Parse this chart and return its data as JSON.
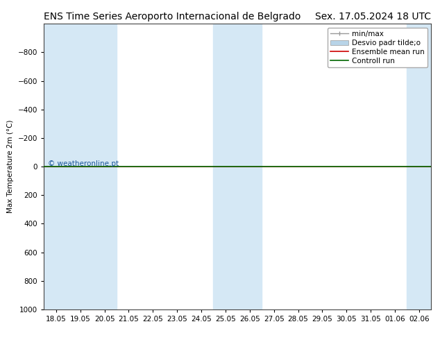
{
  "title_left": "ENS Time Series Aeroporto Internacional de Belgrado",
  "title_right": "Sex. 17.05.2024 18 UTC",
  "ylabel": "Max Temperature 2m (°C)",
  "xlim_dates": [
    "18.05",
    "19.05",
    "20.05",
    "21.05",
    "22.05",
    "23.05",
    "24.05",
    "25.05",
    "26.05",
    "27.05",
    "28.05",
    "29.05",
    "30.05",
    "31.05",
    "01.06",
    "02.06"
  ],
  "ylim": [
    1000,
    -1000
  ],
  "yticks": [
    -800,
    -600,
    -400,
    -200,
    0,
    200,
    400,
    600,
    800,
    1000
  ],
  "background_color": "#ffffff",
  "plot_bg_color": "#ffffff",
  "shaded_indices": [
    0,
    1,
    2,
    7,
    8,
    15
  ],
  "shaded_color": "#d5e8f5",
  "control_run_color": "#006600",
  "ensemble_mean_color": "#cc0000",
  "minmax_color": "#999999",
  "std_dev_color": "#b8d4e8",
  "zero_line_y": 0,
  "watermark": "© weatheronline.pt",
  "watermark_color": "#1a5599",
  "legend_labels": [
    "min/max",
    "Desvio padr tilde;o",
    "Ensemble mean run",
    "Controll run"
  ],
  "title_fontsize": 10,
  "axis_fontsize": 7.5,
  "legend_fontsize": 7.5
}
